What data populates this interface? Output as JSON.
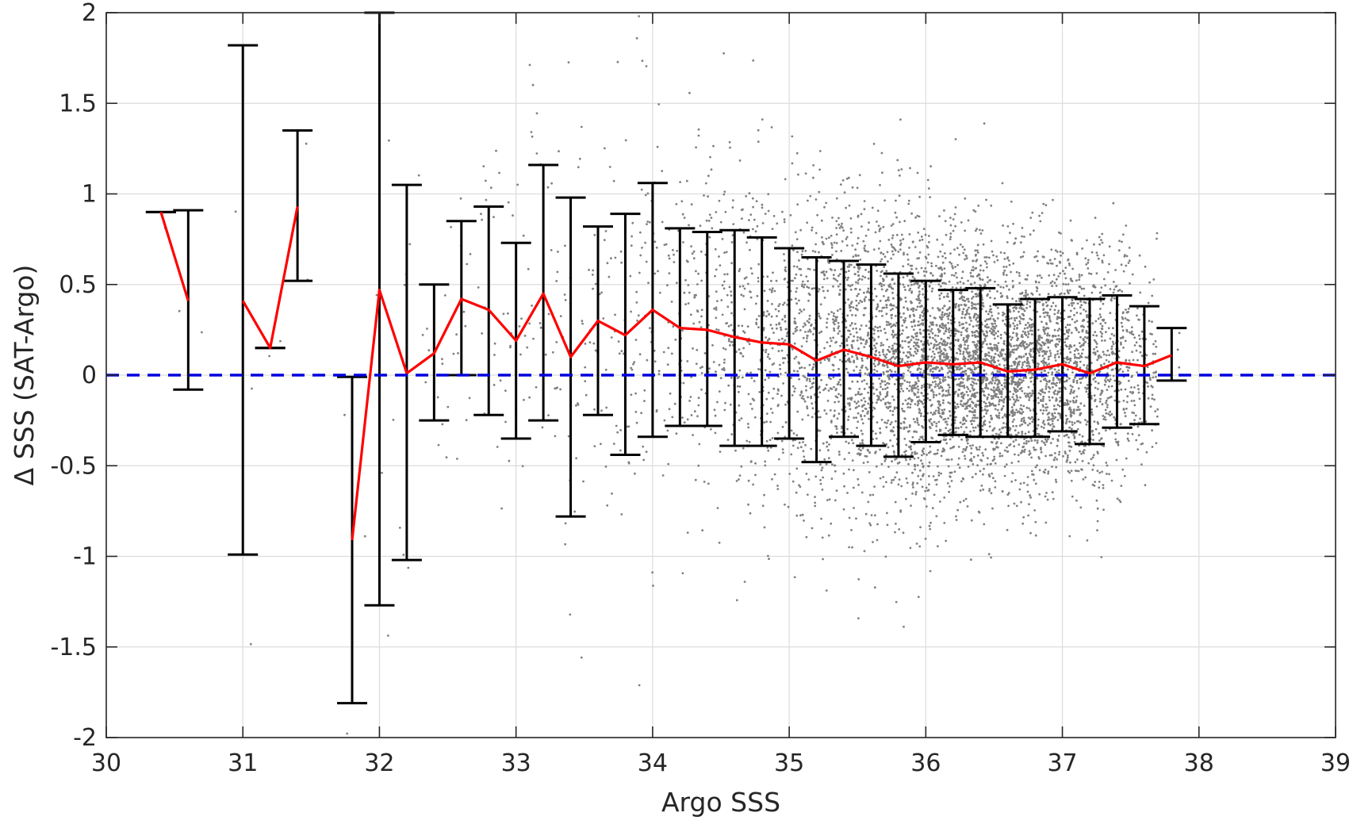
{
  "chart_data": {
    "type": "scatter",
    "xlabel": "Argo SSS",
    "ylabel": "Δ SSS (SAT-Argo)",
    "xlim": [
      30,
      39
    ],
    "ylim": [
      -2,
      2
    ],
    "x_ticks": [
      30,
      31,
      32,
      33,
      34,
      35,
      36,
      37,
      38,
      39
    ],
    "y_ticks": [
      -2,
      -1.5,
      -1,
      -0.5,
      0,
      0.5,
      1,
      1.5,
      2
    ],
    "y_tick_labels": [
      "-2",
      "-1.5",
      "-1",
      "-0.5",
      "0",
      "0.5",
      "1",
      "1.5",
      "2"
    ],
    "grid": true,
    "colors": {
      "scatter": "#808080",
      "mean_line": "#ff0000",
      "error_bars": "#000000",
      "zero_line": "#0000dd",
      "grid": "#dcdcdc",
      "axis": "#262626"
    },
    "zero_line": {
      "y": 0,
      "style": "dashed"
    },
    "scatter_description": "dense cloud of grey points; approximate point density per x-bin with spread (std) per bin",
    "scatter_bins": [
      {
        "x": 30.4,
        "count": 1,
        "mean": 0.9,
        "std": 0.1
      },
      {
        "x": 30.6,
        "count": 2,
        "mean": 0.41,
        "std": 0.5
      },
      {
        "x": 31.0,
        "count": 3,
        "mean": 0.41,
        "std": 1.4
      },
      {
        "x": 31.2,
        "count": 2,
        "mean": 0.15,
        "std": 0.1
      },
      {
        "x": 31.4,
        "count": 3,
        "mean": 0.93,
        "std": 0.4
      },
      {
        "x": 31.8,
        "count": 3,
        "mean": -0.91,
        "std": 0.9
      },
      {
        "x": 32.0,
        "count": 4,
        "mean": 0.47,
        "std": 1.5
      },
      {
        "x": 32.2,
        "count": 8,
        "mean": 0.01,
        "std": 1.0
      },
      {
        "x": 32.4,
        "count": 12,
        "mean": 0.12,
        "std": 0.38
      },
      {
        "x": 32.6,
        "count": 15,
        "mean": 0.42,
        "std": 0.43
      },
      {
        "x": 32.8,
        "count": 20,
        "mean": 0.36,
        "std": 0.57
      },
      {
        "x": 33.0,
        "count": 25,
        "mean": 0.19,
        "std": 0.54
      },
      {
        "x": 33.2,
        "count": 25,
        "mean": 0.45,
        "std": 0.7
      },
      {
        "x": 33.4,
        "count": 30,
        "mean": 0.1,
        "std": 0.88
      },
      {
        "x": 33.6,
        "count": 35,
        "mean": 0.3,
        "std": 0.52
      },
      {
        "x": 33.8,
        "count": 45,
        "mean": 0.22,
        "std": 0.67
      },
      {
        "x": 34.0,
        "count": 55,
        "mean": 0.36,
        "std": 0.7
      },
      {
        "x": 34.2,
        "count": 70,
        "mean": 0.26,
        "std": 0.55
      },
      {
        "x": 34.4,
        "count": 90,
        "mean": 0.25,
        "std": 0.54
      },
      {
        "x": 34.6,
        "count": 120,
        "mean": 0.21,
        "std": 0.6
      },
      {
        "x": 34.8,
        "count": 150,
        "mean": 0.18,
        "std": 0.58
      },
      {
        "x": 35.0,
        "count": 180,
        "mean": 0.17,
        "std": 0.53
      },
      {
        "x": 35.2,
        "count": 230,
        "mean": 0.08,
        "std": 0.57
      },
      {
        "x": 35.4,
        "count": 290,
        "mean": 0.14,
        "std": 0.49
      },
      {
        "x": 35.6,
        "count": 350,
        "mean": 0.1,
        "std": 0.51
      },
      {
        "x": 35.8,
        "count": 420,
        "mean": 0.05,
        "std": 0.51
      },
      {
        "x": 36.0,
        "count": 500,
        "mean": 0.07,
        "std": 0.45
      },
      {
        "x": 36.2,
        "count": 560,
        "mean": 0.06,
        "std": 0.41
      },
      {
        "x": 36.4,
        "count": 560,
        "mean": 0.07,
        "std": 0.41
      },
      {
        "x": 36.6,
        "count": 520,
        "mean": 0.02,
        "std": 0.37
      },
      {
        "x": 36.8,
        "count": 460,
        "mean": 0.03,
        "std": 0.39
      },
      {
        "x": 37.0,
        "count": 400,
        "mean": 0.06,
        "std": 0.38
      },
      {
        "x": 37.2,
        "count": 320,
        "mean": 0.01,
        "std": 0.41
      },
      {
        "x": 37.4,
        "count": 220,
        "mean": 0.07,
        "std": 0.37
      },
      {
        "x": 37.6,
        "count": 120,
        "mean": 0.05,
        "std": 0.33
      },
      {
        "x": 37.8,
        "count": 3,
        "mean": 0.11,
        "std": 0.15
      }
    ],
    "mean_line": {
      "x": [
        30.4,
        30.6,
        31.0,
        31.2,
        31.4,
        31.8,
        32.0,
        32.2,
        32.4,
        32.6,
        32.8,
        33.0,
        33.2,
        33.4,
        33.6,
        33.8,
        34.0,
        34.2,
        34.4,
        34.6,
        34.8,
        35.0,
        35.2,
        35.4,
        35.6,
        35.8,
        36.0,
        36.2,
        36.4,
        36.6,
        36.8,
        37.0,
        37.2,
        37.4,
        37.6,
        37.8
      ],
      "y": [
        0.9,
        0.41,
        0.41,
        0.15,
        0.93,
        -0.91,
        0.47,
        0.01,
        0.12,
        0.42,
        0.36,
        0.19,
        0.45,
        0.1,
        0.3,
        0.22,
        0.36,
        0.26,
        0.25,
        0.21,
        0.18,
        0.17,
        0.08,
        0.14,
        0.1,
        0.05,
        0.07,
        0.06,
        0.07,
        0.02,
        0.03,
        0.06,
        0.01,
        0.07,
        0.05,
        0.11
      ],
      "breaks_after_x": [
        30.6,
        31.4
      ]
    },
    "error_bars": [
      {
        "x": 30.4,
        "low": 0.9,
        "high": 0.9
      },
      {
        "x": 30.6,
        "low": -0.08,
        "high": 0.91
      },
      {
        "x": 31.0,
        "low": -0.99,
        "high": 1.82
      },
      {
        "x": 31.2,
        "low": 0.15,
        "high": 0.15
      },
      {
        "x": 31.4,
        "low": 0.52,
        "high": 1.35
      },
      {
        "x": 31.8,
        "low": -1.81,
        "high": -0.01
      },
      {
        "x": 32.0,
        "low": -1.27,
        "high": 2.0
      },
      {
        "x": 32.2,
        "low": -1.02,
        "high": 1.05
      },
      {
        "x": 32.4,
        "low": -0.25,
        "high": 0.5
      },
      {
        "x": 32.6,
        "low": 0.0,
        "high": 0.85
      },
      {
        "x": 32.8,
        "low": -0.22,
        "high": 0.93
      },
      {
        "x": 33.0,
        "low": -0.35,
        "high": 0.73
      },
      {
        "x": 33.2,
        "low": -0.25,
        "high": 1.16
      },
      {
        "x": 33.4,
        "low": -0.78,
        "high": 0.98
      },
      {
        "x": 33.6,
        "low": -0.22,
        "high": 0.82
      },
      {
        "x": 33.8,
        "low": -0.44,
        "high": 0.89
      },
      {
        "x": 34.0,
        "low": -0.34,
        "high": 1.06
      },
      {
        "x": 34.2,
        "low": -0.28,
        "high": 0.81
      },
      {
        "x": 34.4,
        "low": -0.28,
        "high": 0.79
      },
      {
        "x": 34.6,
        "low": -0.39,
        "high": 0.8
      },
      {
        "x": 34.8,
        "low": -0.39,
        "high": 0.76
      },
      {
        "x": 35.0,
        "low": -0.35,
        "high": 0.7
      },
      {
        "x": 35.2,
        "low": -0.48,
        "high": 0.65
      },
      {
        "x": 35.4,
        "low": -0.34,
        "high": 0.63
      },
      {
        "x": 35.6,
        "low": -0.39,
        "high": 0.61
      },
      {
        "x": 35.8,
        "low": -0.45,
        "high": 0.56
      },
      {
        "x": 36.0,
        "low": -0.37,
        "high": 0.52
      },
      {
        "x": 36.2,
        "low": -0.33,
        "high": 0.47
      },
      {
        "x": 36.4,
        "low": -0.34,
        "high": 0.48
      },
      {
        "x": 36.6,
        "low": -0.34,
        "high": 0.39
      },
      {
        "x": 36.8,
        "low": -0.34,
        "high": 0.42
      },
      {
        "x": 37.0,
        "low": -0.31,
        "high": 0.43
      },
      {
        "x": 37.2,
        "low": -0.38,
        "high": 0.42
      },
      {
        "x": 37.4,
        "low": -0.29,
        "high": 0.44
      },
      {
        "x": 37.6,
        "low": -0.27,
        "high": 0.38
      },
      {
        "x": 37.8,
        "low": -0.03,
        "high": 0.26
      }
    ]
  }
}
